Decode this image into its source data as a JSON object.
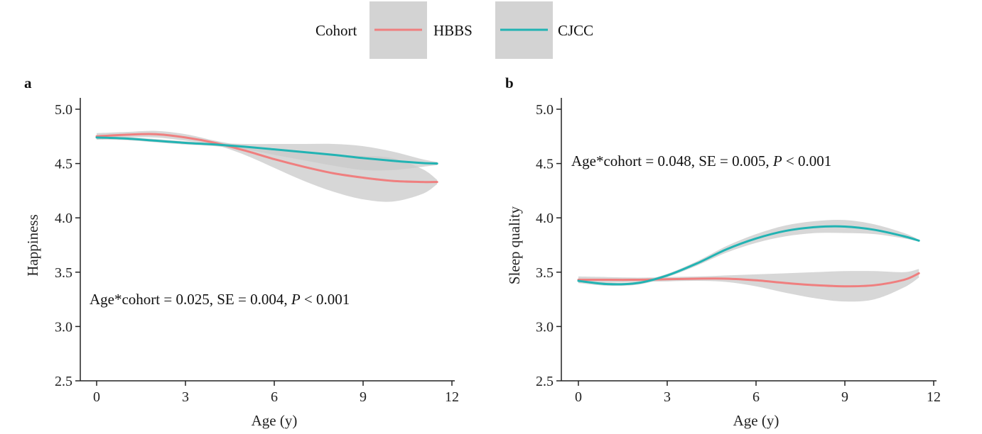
{
  "legend": {
    "title": "Cohort",
    "items": [
      {
        "label": "HBBS",
        "color": "#ef7f7f"
      },
      {
        "label": "CJCC",
        "color": "#22b3b3"
      }
    ],
    "placement": "top-center"
  },
  "ci_color": "#c9c9c9",
  "chart_data": [
    {
      "panel": "a",
      "type": "line",
      "xlabel": "Age (y)",
      "ylabel": "Happiness",
      "xlim": [
        -0.5,
        12
      ],
      "ylim": [
        2.5,
        5.1
      ],
      "xticks": [
        "0",
        "3",
        "6",
        "9",
        "12"
      ],
      "yticks": [
        "2.5",
        "3.0",
        "3.5",
        "4.0",
        "4.5",
        "5.0"
      ],
      "grid": false,
      "annotation": {
        "prefix": "Age*cohort = 0.025, SE = 0.004, ",
        "p_symbol": "P",
        "suffix": " < 0.001"
      },
      "series": [
        {
          "name": "HBBS",
          "x": [
            0,
            1,
            2,
            3,
            4,
            5,
            6,
            7,
            8,
            9,
            10,
            11,
            11.5
          ],
          "y": [
            4.75,
            4.765,
            4.77,
            4.74,
            4.69,
            4.62,
            4.54,
            4.47,
            4.41,
            4.37,
            4.34,
            4.33,
            4.33
          ],
          "lower": [
            4.72,
            4.74,
            4.74,
            4.71,
            4.67,
            4.58,
            4.46,
            4.34,
            4.24,
            4.17,
            4.15,
            4.22,
            4.31
          ],
          "upper": [
            4.78,
            4.79,
            4.8,
            4.77,
            4.71,
            4.66,
            4.62,
            4.6,
            4.58,
            4.57,
            4.55,
            4.45,
            4.35
          ]
        },
        {
          "name": "CJCC",
          "x": [
            0,
            1,
            2,
            3,
            4,
            5,
            6,
            7,
            8,
            9,
            10,
            11,
            11.5
          ],
          "y": [
            4.74,
            4.73,
            4.71,
            4.69,
            4.675,
            4.655,
            4.63,
            4.605,
            4.58,
            4.55,
            4.525,
            4.505,
            4.5
          ],
          "lower": [
            4.72,
            4.715,
            4.695,
            4.675,
            4.66,
            4.63,
            4.58,
            4.53,
            4.48,
            4.44,
            4.44,
            4.47,
            4.485
          ],
          "upper": [
            4.76,
            4.745,
            4.725,
            4.705,
            4.69,
            4.68,
            4.68,
            4.68,
            4.68,
            4.66,
            4.61,
            4.54,
            4.515
          ]
        }
      ]
    },
    {
      "panel": "b",
      "type": "line",
      "xlabel": "Age (y)",
      "ylabel": "Sleep quality",
      "xlim": [
        -0.5,
        12
      ],
      "ylim": [
        2.5,
        5.1
      ],
      "xticks": [
        "0",
        "3",
        "6",
        "9",
        "12"
      ],
      "yticks": [
        "2.5",
        "3.0",
        "3.5",
        "4.0",
        "4.5",
        "5.0"
      ],
      "grid": false,
      "annotation": {
        "prefix": "Age*cohort = 0.048, SE = 0.005, ",
        "p_symbol": "P",
        "suffix": " < 0.001"
      },
      "series": [
        {
          "name": "HBBS",
          "x": [
            0,
            1,
            2,
            3,
            4,
            5,
            6,
            7,
            8,
            9,
            10,
            11,
            11.5
          ],
          "y": [
            3.43,
            3.43,
            3.43,
            3.435,
            3.44,
            3.44,
            3.425,
            3.4,
            3.38,
            3.37,
            3.38,
            3.43,
            3.49
          ],
          "lower": [
            3.4,
            3.405,
            3.41,
            3.415,
            3.42,
            3.41,
            3.37,
            3.31,
            3.26,
            3.23,
            3.25,
            3.36,
            3.45
          ],
          "upper": [
            3.46,
            3.455,
            3.45,
            3.455,
            3.46,
            3.47,
            3.48,
            3.49,
            3.5,
            3.51,
            3.51,
            3.5,
            3.53
          ]
        },
        {
          "name": "CJCC",
          "x": [
            0,
            1,
            2,
            3,
            4,
            5,
            6,
            7,
            8,
            9,
            10,
            11,
            11.5
          ],
          "y": [
            3.42,
            3.39,
            3.4,
            3.47,
            3.58,
            3.71,
            3.81,
            3.88,
            3.915,
            3.92,
            3.89,
            3.83,
            3.79
          ],
          "lower": [
            3.4,
            3.375,
            3.385,
            3.455,
            3.56,
            3.68,
            3.77,
            3.83,
            3.86,
            3.86,
            3.85,
            3.81,
            3.78
          ],
          "upper": [
            3.44,
            3.405,
            3.415,
            3.485,
            3.6,
            3.74,
            3.85,
            3.93,
            3.97,
            3.98,
            3.94,
            3.86,
            3.8
          ]
        }
      ]
    }
  ]
}
